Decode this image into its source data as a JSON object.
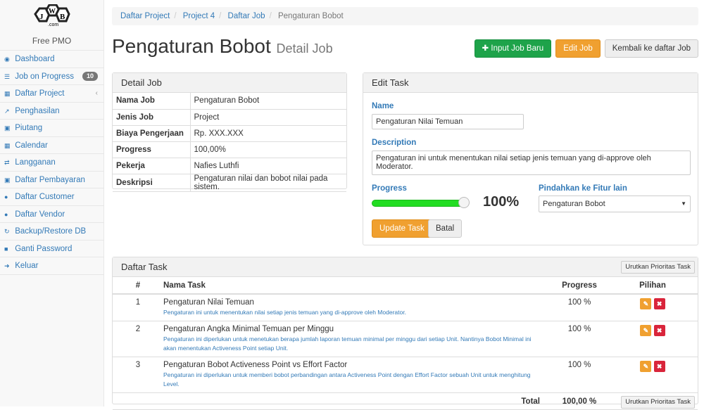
{
  "sidebar": {
    "logo_text": "JWB .com",
    "brand": "Free PMO",
    "items": [
      {
        "label": "Dashboard",
        "icon": "dashboard-icon",
        "glyph": "◉"
      },
      {
        "label": "Job on Progress",
        "icon": "tasks-icon",
        "glyph": "☰",
        "badge": "10"
      },
      {
        "label": "Daftar Project",
        "icon": "table-icon",
        "glyph": "▦",
        "chevron": "‹"
      },
      {
        "label": "Penghasilan",
        "icon": "line-chart-icon",
        "glyph": "↗"
      },
      {
        "label": "Piutang",
        "icon": "money-icon",
        "glyph": "▣"
      },
      {
        "label": "Calendar",
        "icon": "calendar-icon",
        "glyph": "▦"
      },
      {
        "label": "Langganan",
        "icon": "retweet-icon",
        "glyph": "⇄"
      },
      {
        "label": "Daftar Pembayaran",
        "icon": "money-icon",
        "glyph": "▣"
      },
      {
        "label": "Daftar Customer",
        "icon": "users-icon",
        "glyph": "●"
      },
      {
        "label": "Daftar Vendor",
        "icon": "users-icon",
        "glyph": "●"
      },
      {
        "label": "Backup/Restore DB",
        "icon": "refresh-icon",
        "glyph": "↻"
      },
      {
        "label": "Ganti Password",
        "icon": "lock-icon",
        "glyph": "■"
      },
      {
        "label": "Keluar",
        "icon": "sign-out-icon",
        "glyph": "➜"
      }
    ]
  },
  "breadcrumb": [
    "Daftar Project",
    "Project 4",
    "Daftar Job",
    "Pengaturan Bobot"
  ],
  "header": {
    "title": "Pengaturan Bobot",
    "subtitle": "Detail Job",
    "btn_new": "Input Job Baru",
    "btn_edit": "Edit Job",
    "btn_back": "Kembali ke daftar Job"
  },
  "detail": {
    "title": "Detail Job",
    "rows": [
      [
        "Nama Job",
        "Pengaturan Bobot"
      ],
      [
        "Jenis Job",
        "Project"
      ],
      [
        "Biaya Pengerjaan",
        "Rp. XXX.XXX"
      ],
      [
        "Progress",
        "100,00%"
      ],
      [
        "Pekerja",
        "Nafies Luthfi"
      ],
      [
        "Deskripsi",
        "Pengaturan nilai dan bobot nilai pada sistem."
      ]
    ]
  },
  "edit": {
    "title": "Edit Task",
    "name_label": "Name",
    "name_value": "Pengaturan Nilai Temuan",
    "desc_label": "Description",
    "desc_value": "Pengaturan ini untuk menentukan nilai setiap jenis temuan yang di-approve oleh Moderator.",
    "progress_label": "Progress",
    "progress_value": 100,
    "progress_text": "100%",
    "move_label": "Pindahkan ke Fitur lain",
    "move_value": "Pengaturan Bobot",
    "btn_update": "Update Task",
    "btn_cancel": "Batal",
    "accent": "#22dd22"
  },
  "tasks": {
    "title": "Daftar Task",
    "sort_btn": "Urutkan Prioritas Task",
    "headers": [
      "#",
      "Nama Task",
      "Progress",
      "Pilihan"
    ],
    "rows": [
      {
        "no": "1",
        "name": "Pengaturan Nilai Temuan",
        "desc": "Pengaturan ini untuk menentukan nilai setiap jenis temuan yang di-approve oleh Moderator.",
        "progress": "100 %"
      },
      {
        "no": "2",
        "name": "Pengaturan Angka Minimal Temuan per Minggu",
        "desc": "Pengaturan ini diperlukan untuk menetukan berapa jumlah laporan temuan minimal per minggu dari setiap Unit. Nantinya Bobot Minimal ini akan menentukan Activeness Point setiap Unit.",
        "progress": "100 %"
      },
      {
        "no": "3",
        "name": "Pengaturan Bobot Activeness Point vs Effort Factor",
        "desc": "Pengaturan ini diperlukan untuk memberi bobot perbandingan antara Activeness Point dengan Effort Factor sebuah Unit untuk menghitung Level.",
        "progress": "100 %"
      }
    ],
    "total_label": "Total",
    "total_value": "100,00 %"
  }
}
